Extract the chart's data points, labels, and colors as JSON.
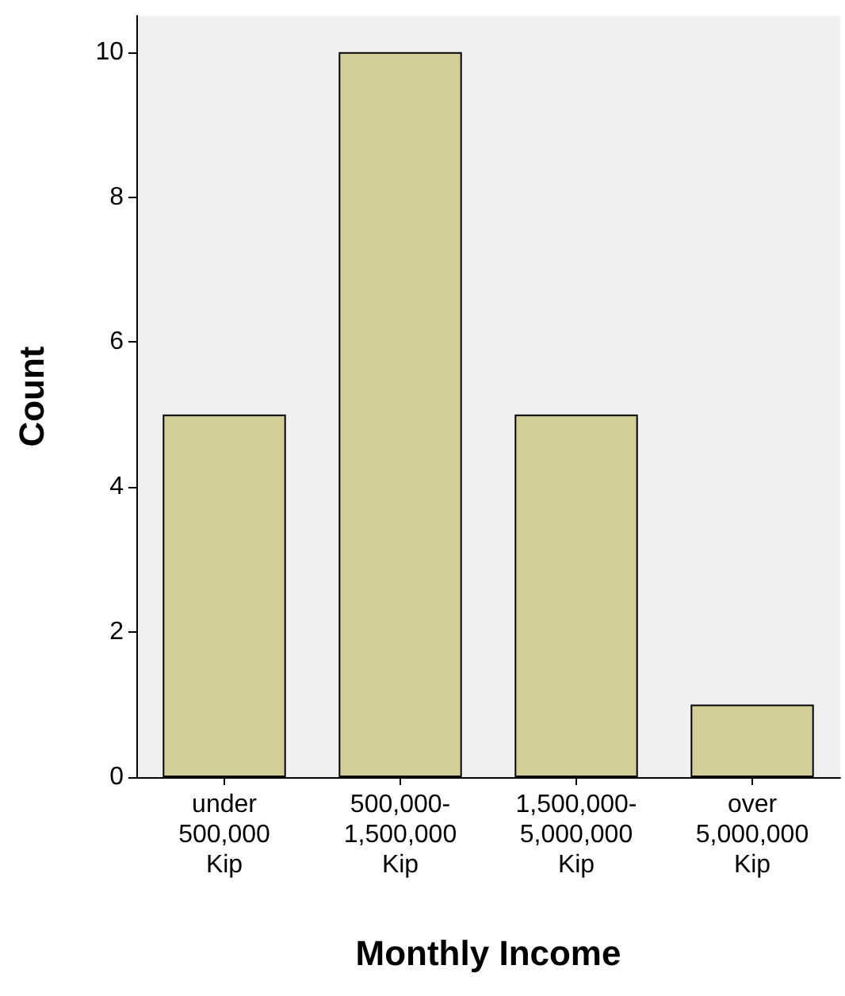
{
  "chart_data": {
    "type": "bar",
    "xlabel": "Monthly Income",
    "ylabel": "Count",
    "categories": [
      "under 500,000 Kip",
      "500,000-1,500,000 Kip",
      "1,500,000-5,000,000 Kip",
      "over 5,000,000 Kip"
    ],
    "values": [
      5,
      10,
      5,
      1
    ],
    "color": "#d3ce97",
    "ylim": [
      0,
      10.5
    ],
    "yticks": [
      0,
      2,
      4,
      6,
      8,
      10
    ],
    "grid": false
  }
}
